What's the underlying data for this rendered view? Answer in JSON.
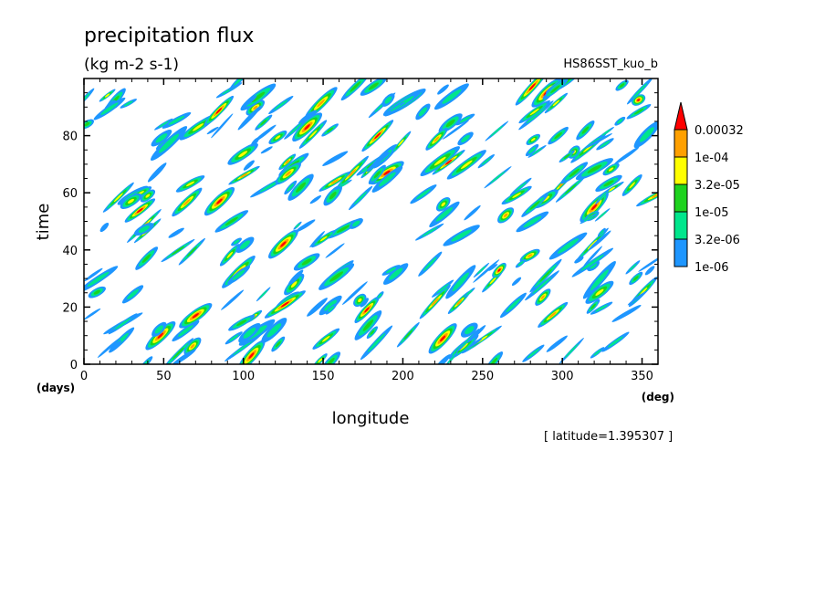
{
  "title": "precipitation flux",
  "units": "(kg m-2 s-1)",
  "run_label": "HS86SST_kuo_b",
  "footnote": "[ latitude=1.395307 ]",
  "chart_data": {
    "type": "heatmap",
    "xlabel": "longitude",
    "x_unit": "(deg)",
    "ylabel": "time",
    "y_unit": "(days)",
    "xlim": [
      0,
      360
    ],
    "ylim": [
      0,
      100
    ],
    "xticks": [
      0,
      50,
      100,
      150,
      200,
      250,
      300,
      350
    ],
    "yticks": [
      0,
      20,
      40,
      60,
      80
    ],
    "colorbar": {
      "labels": [
        "1e-06",
        "3.2e-06",
        "1e-05",
        "3.2e-05",
        "1e-04",
        "0.00032"
      ],
      "levels": [
        1e-06,
        3.2e-06,
        1e-05,
        3.2e-05,
        0.0001,
        0.00032
      ],
      "colors": [
        "#1e96ff",
        "#00e68c",
        "#1ed21e",
        "#ffff00",
        "#ffa000",
        "#ff0000"
      ],
      "extend": "max"
    },
    "features": [
      {
        "lon": 48,
        "time": 10,
        "level": 5
      },
      {
        "lon": 70,
        "time": 17,
        "level": 5
      },
      {
        "lon": 85,
        "time": 57,
        "level": 5
      },
      {
        "lon": 105,
        "time": 3,
        "level": 5
      },
      {
        "lon": 125,
        "time": 42,
        "level": 5
      },
      {
        "lon": 140,
        "time": 83,
        "level": 5
      },
      {
        "lon": 190,
        "time": 67,
        "level": 5
      },
      {
        "lon": 225,
        "time": 9,
        "level": 5
      },
      {
        "lon": 290,
        "time": 95,
        "level": 5
      },
      {
        "lon": 320,
        "time": 55,
        "level": 5
      }
    ]
  }
}
